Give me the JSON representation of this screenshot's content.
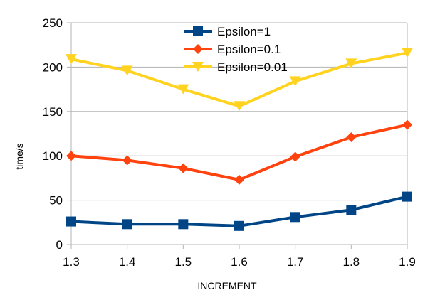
{
  "chart_data": {
    "type": "line",
    "title": "",
    "xlabel": "INCREMENT",
    "ylabel": "time/s",
    "x": [
      1.3,
      1.4,
      1.5,
      1.6,
      1.7,
      1.8,
      1.9
    ],
    "xlim": [
      1.3,
      1.9
    ],
    "ylim": [
      0,
      250
    ],
    "x_ticks": [
      "1.3",
      "1.4",
      "1.5",
      "1.6",
      "1.7",
      "1.8",
      "1.9"
    ],
    "y_ticks": [
      "0",
      "50",
      "100",
      "150",
      "200",
      "250"
    ],
    "grid": "horizontal",
    "legend_position": "top-center",
    "series": [
      {
        "name": "Epsilon=1",
        "color": "#004586",
        "marker": "square",
        "values": [
          26,
          23,
          23,
          21,
          31,
          39,
          54
        ]
      },
      {
        "name": "Epsilon=0.1",
        "color": "#ff420e",
        "marker": "diamond",
        "values": [
          100,
          95,
          86,
          73,
          99,
          121,
          135
        ]
      },
      {
        "name": "Epsilon=0.01",
        "color": "#ffd320",
        "marker": "triangle-down",
        "values": [
          209,
          196,
          175,
          156,
          184,
          204,
          216
        ]
      }
    ]
  }
}
